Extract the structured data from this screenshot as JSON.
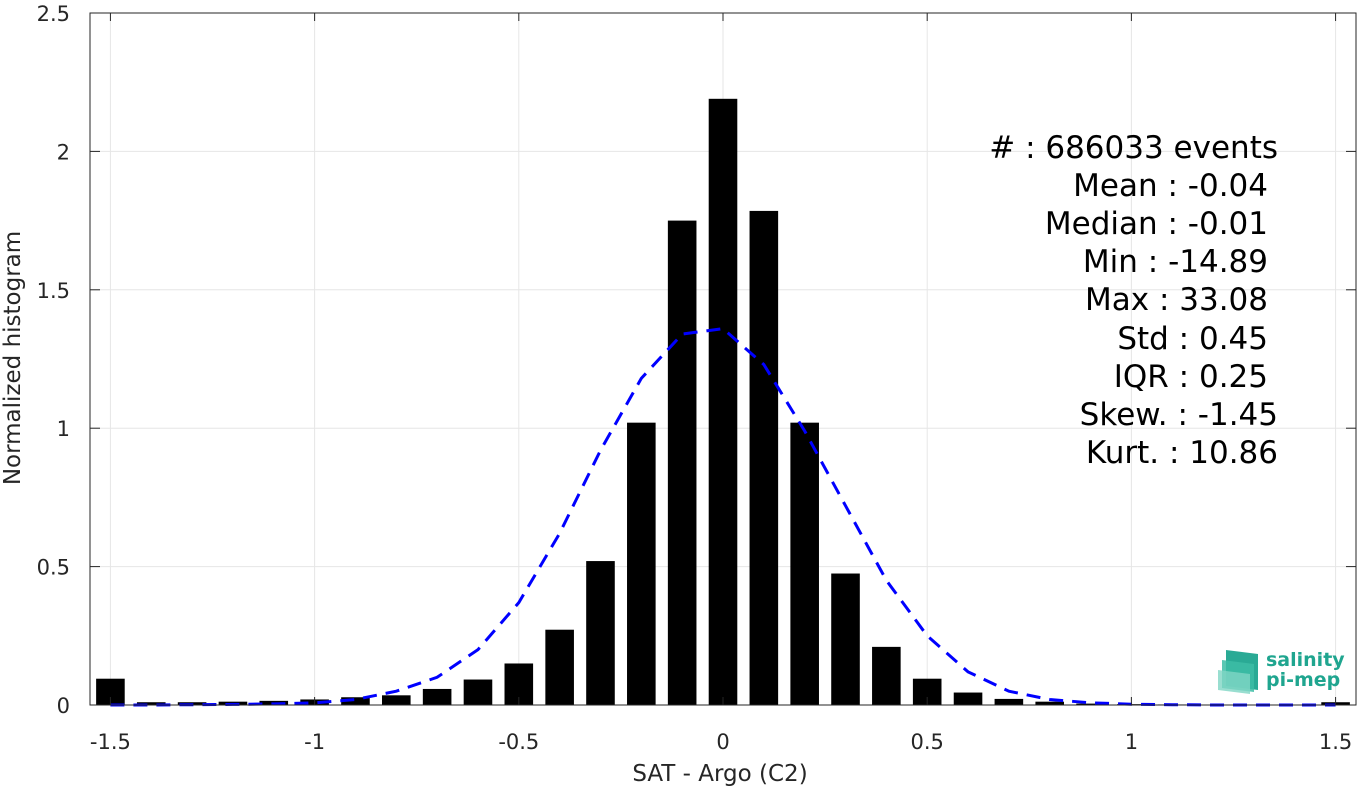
{
  "chart_data": {
    "type": "bar",
    "xlabel": "SAT - Argo (C2)",
    "ylabel": "Normalized histogram",
    "xlim": [
      -1.55,
      1.55
    ],
    "ylim": [
      0,
      2.5
    ],
    "grid": true,
    "x_ticks": [
      -1.5,
      -1,
      -0.5,
      0,
      0.5,
      1,
      1.5
    ],
    "x_tick_labels": [
      "-1.5",
      "-1",
      "-0.5",
      "0",
      "0.5",
      "1",
      "1.5"
    ],
    "y_ticks": [
      0,
      0.5,
      1,
      1.5,
      2,
      2.5
    ],
    "y_tick_labels": [
      "0",
      "0.5",
      "1",
      "1.5",
      "2",
      "2.5"
    ],
    "bar_width": 0.07,
    "bars": {
      "x": [
        -1.5,
        -1.4,
        -1.3,
        -1.2,
        -1.1,
        -1.0,
        -0.9,
        -0.8,
        -0.7,
        -0.6,
        -0.5,
        -0.4,
        -0.3,
        -0.2,
        -0.1,
        0.0,
        0.1,
        0.2,
        0.3,
        0.4,
        0.5,
        0.6,
        0.7,
        0.8,
        0.9,
        1.0,
        1.1,
        1.2,
        1.3,
        1.4,
        1.5
      ],
      "values": [
        0.095,
        0.01,
        0.01,
        0.012,
        0.015,
        0.02,
        0.028,
        0.035,
        0.058,
        0.092,
        0.15,
        0.272,
        0.52,
        1.02,
        1.75,
        2.19,
        1.785,
        1.02,
        0.475,
        0.21,
        0.095,
        0.045,
        0.022,
        0.012,
        0.005,
        0.003,
        0.002,
        0.001,
        0.001,
        0.001,
        0.01
      ]
    },
    "fit_curve": {
      "style": "dashed",
      "color": "#0000ff",
      "x": [
        -1.5,
        -1.4,
        -1.3,
        -1.2,
        -1.1,
        -1.0,
        -0.9,
        -0.8,
        -0.7,
        -0.6,
        -0.5,
        -0.4,
        -0.3,
        -0.2,
        -0.1,
        0.0,
        0.1,
        0.2,
        0.3,
        0.4,
        0.5,
        0.6,
        0.7,
        0.8,
        0.9,
        1.0,
        1.1,
        1.2,
        1.3,
        1.4,
        1.5
      ],
      "values": [
        0.0,
        0.0,
        0.001,
        0.002,
        0.004,
        0.008,
        0.02,
        0.05,
        0.1,
        0.2,
        0.37,
        0.62,
        0.92,
        1.18,
        1.34,
        1.36,
        1.23,
        0.99,
        0.72,
        0.45,
        0.25,
        0.12,
        0.05,
        0.02,
        0.008,
        0.003,
        0.001,
        0.0,
        0.0,
        0.0,
        0.0
      ]
    },
    "colors": {
      "bars": "#000000",
      "fit": "#0000ff",
      "grid": "#e6e6e6",
      "axis": "#262626"
    }
  },
  "stats": [
    "#  : 686033 events",
    "Mean : -0.04",
    "Median : -0.01",
    "Min : -14.89",
    "Max : 33.08",
    "Std : 0.45",
    "IQR : 0.25",
    "Skew. : -1.45",
    "Kurt. : 10.86"
  ],
  "logo": {
    "line1": "salinity",
    "line2": "pi-mep",
    "color": "#1fa58f"
  }
}
